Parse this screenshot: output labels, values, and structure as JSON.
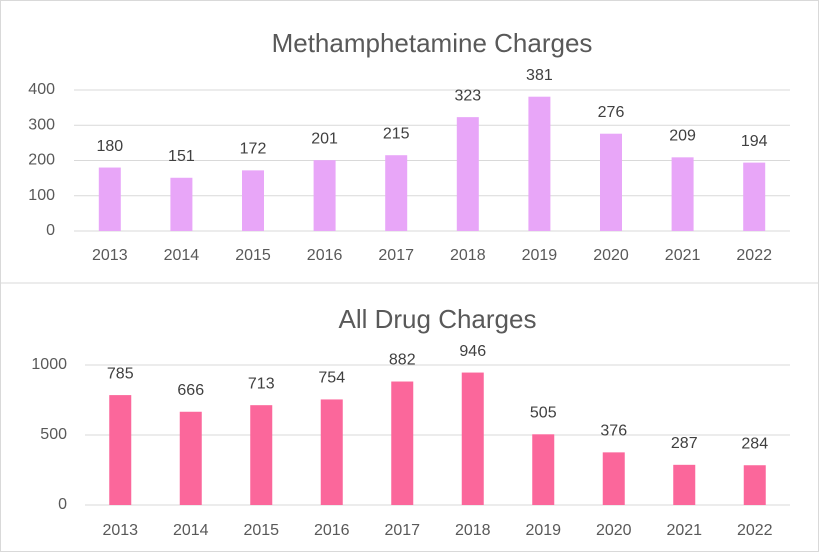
{
  "chart_data": [
    {
      "type": "bar",
      "title": "Methamphetamine Charges",
      "categories": [
        "2013",
        "2014",
        "2015",
        "2016",
        "2017",
        "2018",
        "2019",
        "2020",
        "2021",
        "2022"
      ],
      "values": [
        180,
        151,
        172,
        201,
        215,
        323,
        381,
        276,
        209,
        194
      ],
      "color": "#e8a6f8",
      "ylim": [
        0,
        400
      ],
      "yticks": [
        0,
        100,
        200,
        300,
        400
      ],
      "grid": true
    },
    {
      "type": "bar",
      "title": "All Drug Charges",
      "categories": [
        "2013",
        "2014",
        "2015",
        "2016",
        "2017",
        "2018",
        "2019",
        "2020",
        "2021",
        "2022"
      ],
      "values": [
        785,
        666,
        713,
        754,
        882,
        946,
        505,
        376,
        287,
        284
      ],
      "color": "#fb679b",
      "ylim": [
        0,
        1000
      ],
      "yticks": [
        0,
        500,
        1000
      ],
      "grid": true
    }
  ]
}
